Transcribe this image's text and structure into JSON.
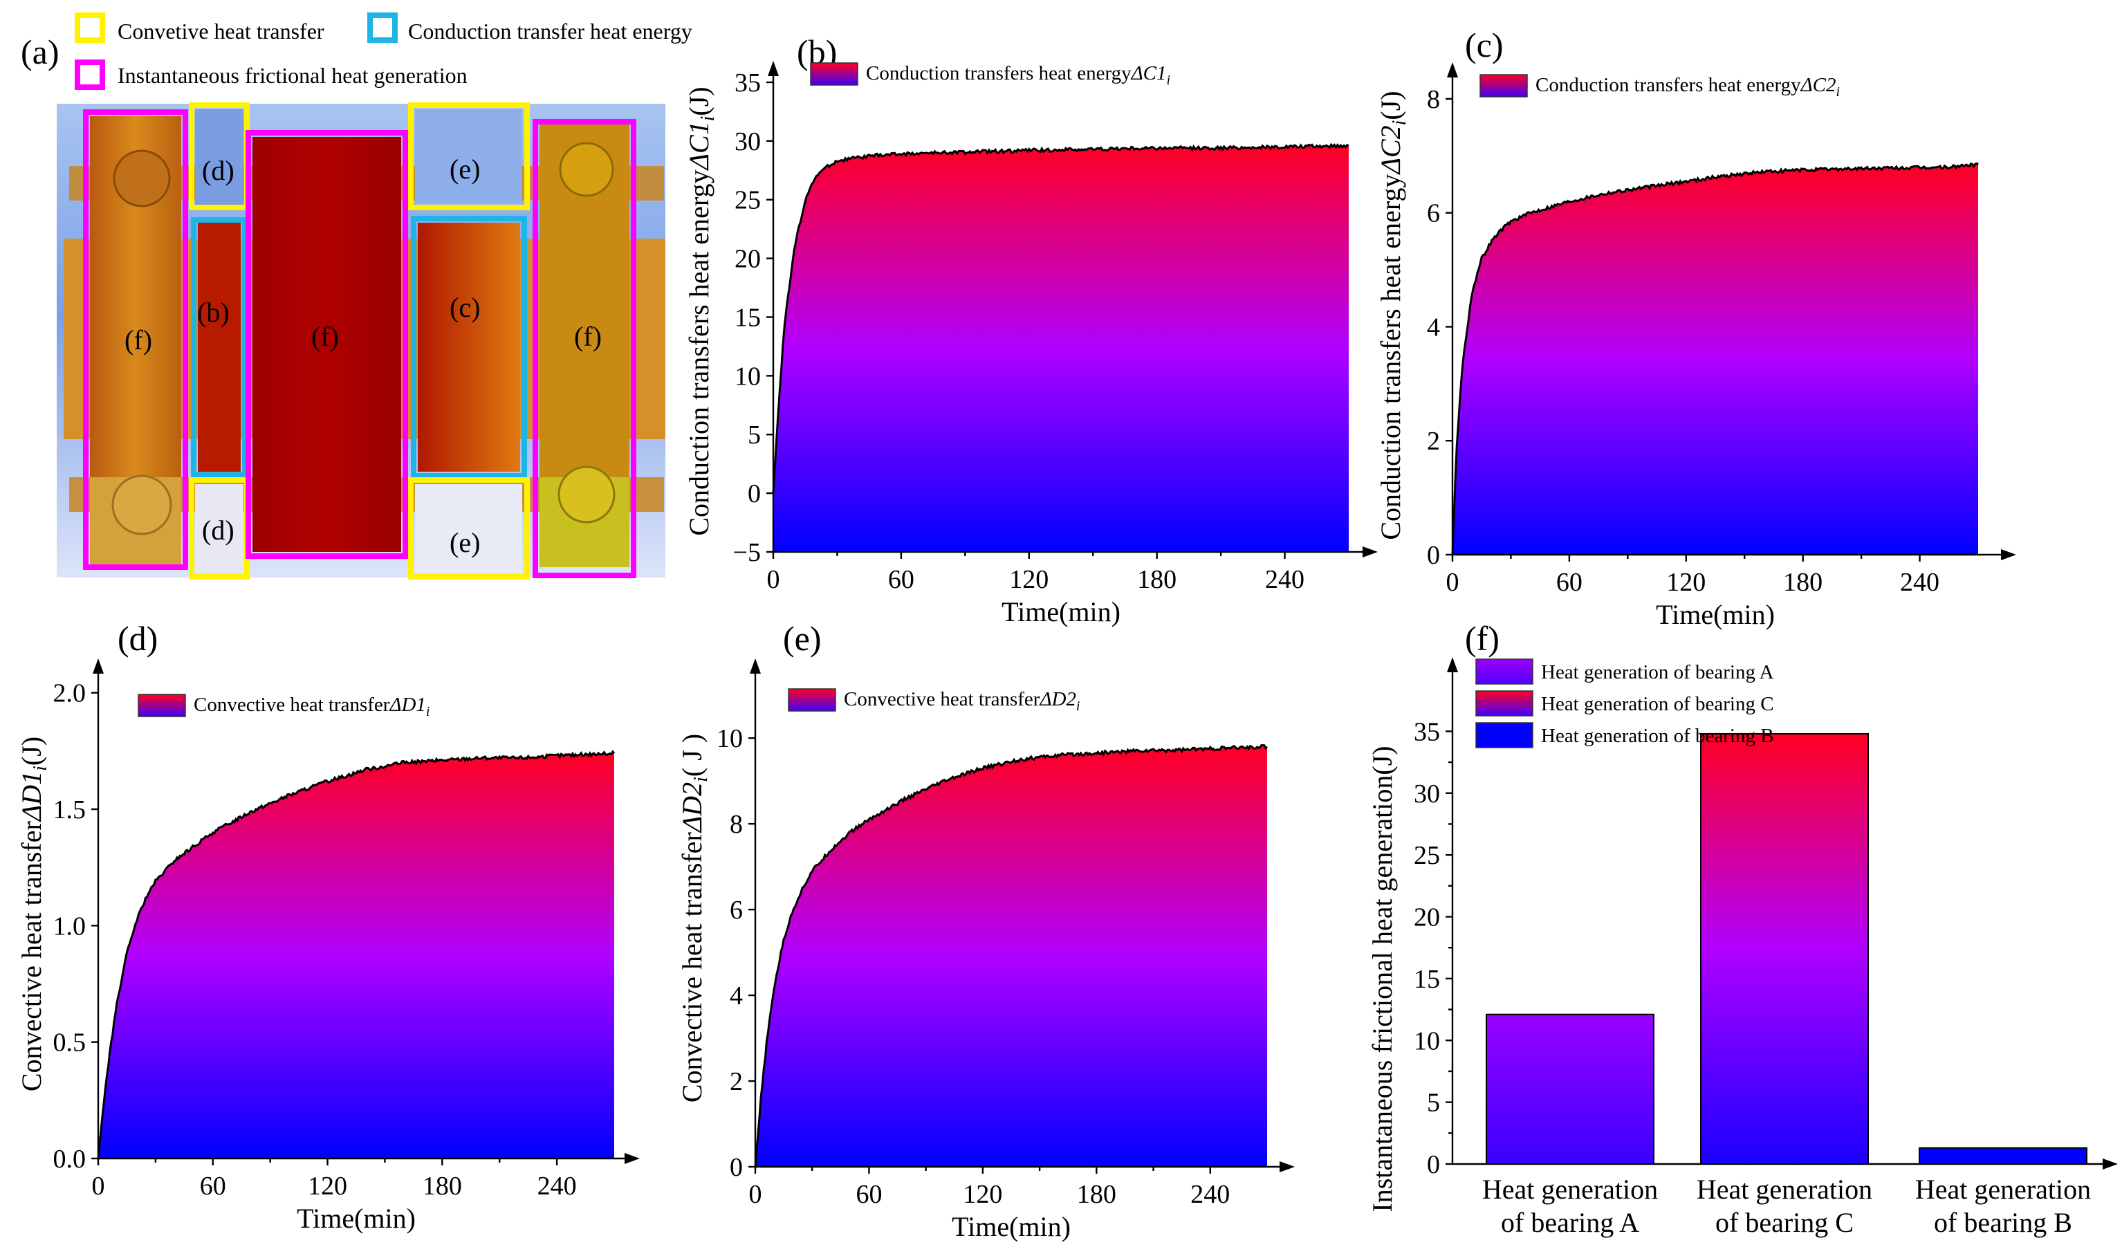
{
  "panels": {
    "a": {
      "label": "(a)",
      "legend": [
        "Convetive heat transfer",
        "Conduction transfer heat energy",
        "Instantaneous frictional heat generation"
      ],
      "colors": {
        "convective": "#FFF200",
        "conduction": "#1EB4E6",
        "friction": "#FF00FF"
      },
      "region_labels": {
        "d": "(d)",
        "b": "(b)",
        "f": "(f)",
        "e": "(e)",
        "c": "(c)"
      }
    },
    "b": {
      "label": "(b)"
    },
    "c": {
      "label": "(c)"
    },
    "d": {
      "label": "(d)"
    },
    "e": {
      "label": "(e)"
    },
    "f": {
      "label": "(f)"
    }
  },
  "chart_data": [
    {
      "id": "b",
      "type": "area",
      "legend": [
        "Conduction transfers heat energy",
        "ΔC1",
        "i"
      ],
      "ylabel": [
        "Conduction transfers heat energy",
        "ΔC1",
        "i",
        "(J)"
      ],
      "xlabel": "Time(min)",
      "xlim": [
        0,
        270
      ],
      "ylim": [
        -5,
        36
      ],
      "xticks": [
        "0",
        "60",
        "120",
        "180",
        "240"
      ],
      "yticks": [
        "−5",
        "0",
        "5",
        "10",
        "15",
        "20",
        "25",
        "30",
        "35"
      ],
      "curve": {
        "x": [
          0,
          2,
          5,
          10,
          15,
          20,
          25,
          30,
          40,
          50,
          60,
          80,
          100,
          120,
          150,
          180,
          210,
          240,
          270
        ],
        "y": [
          0,
          6,
          14,
          21,
          25,
          27,
          27.8,
          28.3,
          28.6,
          28.8,
          28.9,
          29.0,
          29.1,
          29.2,
          29.3,
          29.4,
          29.4,
          29.5,
          29.6
        ]
      }
    },
    {
      "id": "c",
      "type": "area",
      "legend": [
        "Conduction transfers heat energy",
        "ΔC2",
        "i"
      ],
      "ylabel": [
        "Conduction transfers heat energy",
        "ΔC2",
        "i",
        "(J)"
      ],
      "xlabel": "Time(min)",
      "xlim": [
        0,
        270
      ],
      "ylim": [
        0,
        8.4
      ],
      "xticks": [
        "0",
        "60",
        "120",
        "180",
        "240"
      ],
      "yticks": [
        "0",
        "2",
        "4",
        "6",
        "8"
      ],
      "curve": {
        "x": [
          0,
          2,
          5,
          10,
          15,
          20,
          25,
          30,
          40,
          50,
          60,
          80,
          100,
          120,
          140,
          160,
          180,
          200,
          220,
          240,
          255,
          270
        ],
        "y": [
          0,
          1.8,
          3.3,
          4.6,
          5.2,
          5.5,
          5.7,
          5.85,
          6.0,
          6.1,
          6.2,
          6.35,
          6.45,
          6.55,
          6.65,
          6.72,
          6.75,
          6.77,
          6.78,
          6.79,
          6.8,
          6.85
        ]
      }
    },
    {
      "id": "d",
      "type": "area",
      "legend": [
        "Convective heat transfer",
        "ΔD1",
        "i"
      ],
      "ylabel": [
        "Convective heat transfer",
        "ΔD1",
        "i",
        "(J)"
      ],
      "xlabel": "Time(min)",
      "xlim": [
        0,
        270
      ],
      "ylim": [
        0,
        2.1
      ],
      "xticks": [
        "0",
        "60",
        "120",
        "180",
        "240"
      ],
      "yticks": [
        "0.0",
        "0.5",
        "1.0",
        "1.5",
        "2.0"
      ],
      "curve": {
        "x": [
          0,
          3,
          6,
          10,
          15,
          20,
          25,
          30,
          40,
          50,
          60,
          80,
          100,
          120,
          140,
          160,
          180,
          200,
          220,
          240,
          270
        ],
        "y": [
          0,
          0.25,
          0.45,
          0.68,
          0.88,
          1.02,
          1.12,
          1.19,
          1.28,
          1.34,
          1.4,
          1.49,
          1.56,
          1.62,
          1.67,
          1.7,
          1.71,
          1.72,
          1.72,
          1.73,
          1.74
        ]
      }
    },
    {
      "id": "e",
      "type": "area",
      "legend": [
        "Convective heat transfer",
        "ΔD2",
        "i"
      ],
      "ylabel": [
        "Convective heat transfer",
        "ΔD2",
        "i",
        "( J )"
      ],
      "xlabel": "Time(min)",
      "xlim": [
        0,
        270
      ],
      "ylim": [
        0,
        11.6
      ],
      "xticks": [
        "0",
        "60",
        "120",
        "180",
        "240"
      ],
      "yticks": [
        "0",
        "2",
        "4",
        "6",
        "8",
        "10"
      ],
      "curve": {
        "x": [
          0,
          3,
          6,
          10,
          15,
          20,
          25,
          30,
          40,
          50,
          60,
          80,
          100,
          120,
          140,
          160,
          180,
          200,
          220,
          240,
          270
        ],
        "y": [
          0,
          1.6,
          2.9,
          4.2,
          5.3,
          6.0,
          6.5,
          6.9,
          7.4,
          7.8,
          8.1,
          8.6,
          9.0,
          9.3,
          9.5,
          9.6,
          9.65,
          9.7,
          9.72,
          9.75,
          9.8
        ]
      }
    },
    {
      "id": "f",
      "type": "bar",
      "ylabel": "Instantaneous frictional heat generation(J)",
      "ylim": [
        0,
        40
      ],
      "yticks": [
        "0",
        "5",
        "10",
        "15",
        "20",
        "25",
        "30",
        "35"
      ],
      "categories": [
        [
          "Heat generation",
          "of bearing A"
        ],
        [
          "Heat generation",
          "of bearing C"
        ],
        [
          "Heat generation",
          "of bearing B"
        ]
      ],
      "values": [
        12.1,
        34.8,
        1.3
      ],
      "legend": [
        "Heat generation of bearing A",
        "Heat generation of bearing C",
        "Heat generation of bearing B"
      ]
    }
  ],
  "colors": {
    "grad_top": "#FF0020",
    "grad_mid": "#B000FF",
    "grad_bottom": "#0000FF",
    "bar_A_top": "#9B00FF",
    "bar_B": "#0000FF"
  }
}
